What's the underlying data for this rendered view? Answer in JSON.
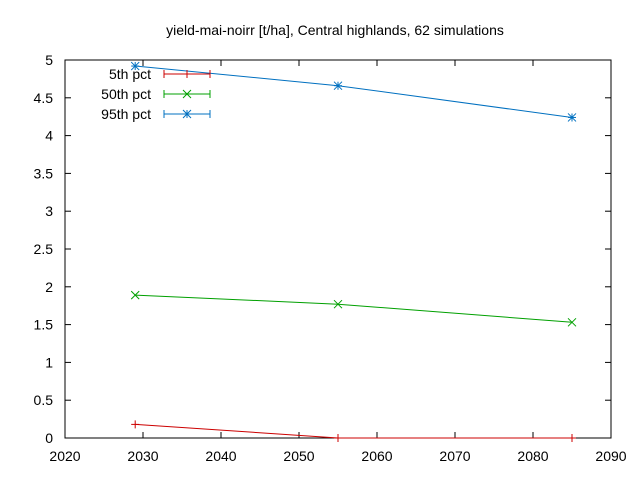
{
  "chart_data": {
    "type": "line",
    "title": "yield-mai-noirr [t/ha], Central highlands, 62 simulations",
    "xlabel": "",
    "ylabel": "",
    "xlim": [
      2020,
      2090
    ],
    "ylim": [
      0,
      5
    ],
    "x_ticks": [
      "2020",
      "2030",
      "2040",
      "2050",
      "2060",
      "2070",
      "2080",
      "2090"
    ],
    "y_ticks": [
      "0",
      "0.5",
      "1",
      "1.5",
      "2",
      "2.5",
      "3",
      "3.5",
      "4",
      "4.5",
      "5"
    ],
    "grid": false,
    "legend_position": "top-left",
    "series": [
      {
        "name": "5th pct",
        "color": "#cc0000",
        "marker": "plus",
        "x": [
          2029,
          2055,
          2085
        ],
        "values": [
          0.18,
          0.0,
          0.0
        ]
      },
      {
        "name": "50th pct",
        "color": "#00a000",
        "marker": "cross",
        "x": [
          2029,
          2055,
          2085
        ],
        "values": [
          1.89,
          1.77,
          1.53
        ]
      },
      {
        "name": "95th pct",
        "color": "#0070c0",
        "marker": "star",
        "x": [
          2029,
          2055,
          2085
        ],
        "values": [
          4.92,
          4.66,
          4.24
        ]
      }
    ]
  }
}
